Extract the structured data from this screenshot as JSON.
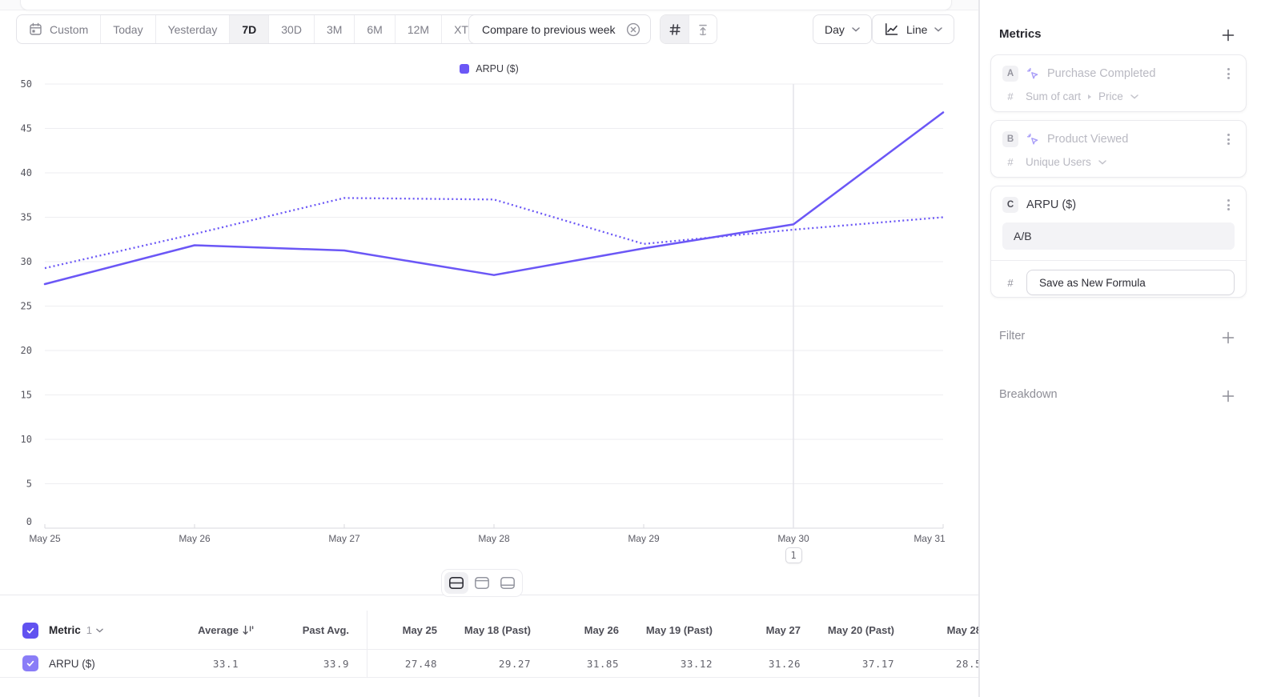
{
  "colors": {
    "accent": "#6b57f6"
  },
  "toolbar": {
    "date_ranges": [
      {
        "label": "Custom"
      },
      {
        "label": "Today"
      },
      {
        "label": "Yesterday"
      },
      {
        "label": "7D"
      },
      {
        "label": "30D"
      },
      {
        "label": "3M"
      },
      {
        "label": "6M"
      },
      {
        "label": "12M"
      },
      {
        "label": "XTD"
      }
    ],
    "active_range": "7D",
    "compare_chip": "Compare to previous week",
    "granularity": "Day",
    "chart_type": "Line"
  },
  "chart_data": {
    "type": "line",
    "legend": [
      {
        "label": "ARPU ($)",
        "color": "#6b57f6"
      }
    ],
    "x": [
      "May 25",
      "May 26",
      "May 27",
      "May 28",
      "May 29",
      "May 30",
      "May 31"
    ],
    "series": [
      {
        "name": "ARPU ($)",
        "style": "solid",
        "color": "#6b57f6",
        "values": [
          27.48,
          31.85,
          31.26,
          28.5,
          31.5,
          34.2,
          46.8
        ]
      },
      {
        "name": "ARPU ($) previous week",
        "style": "dotted",
        "color": "#6b57f6",
        "values": [
          29.27,
          33.12,
          37.17,
          37.0,
          32.0,
          33.6,
          35.0
        ]
      }
    ],
    "ylim": [
      0,
      50
    ],
    "ytick_step": 5,
    "grid": true,
    "annotation": {
      "label": "1",
      "x_index": 5
    }
  },
  "sidebar": {
    "metrics_title": "Metrics",
    "cards": [
      {
        "badge": "A",
        "title": "Purchase Completed",
        "measure_type": "#",
        "measure_primary": "Sum of cart",
        "measure_secondary": "Price",
        "dimmed": true
      },
      {
        "badge": "B",
        "title": "Product Viewed",
        "measure_type": "#",
        "measure_primary": "Unique Users",
        "dimmed": true
      },
      {
        "badge": "C",
        "title": "ARPU ($)",
        "measure_type": "#",
        "formula": "A/B",
        "save_button_label": "Save as New Formula"
      }
    ],
    "filter_title": "Filter",
    "breakdown_title": "Breakdown"
  },
  "table": {
    "metric_label": "Metric",
    "metric_count": "1",
    "summary_columns": [
      "Average",
      "Past Avg."
    ],
    "date_columns": [
      "May 25",
      "May 18 (Past)",
      "May 26",
      "May 19 (Past)",
      "May 27",
      "May 20 (Past)",
      "May 28"
    ],
    "rows": [
      {
        "name": "ARPU ($)",
        "summary_values": [
          "33.1",
          "33.9"
        ],
        "date_values": [
          "27.48",
          "29.27",
          "31.85",
          "33.12",
          "31.26",
          "37.17",
          "28.5"
        ]
      }
    ]
  }
}
